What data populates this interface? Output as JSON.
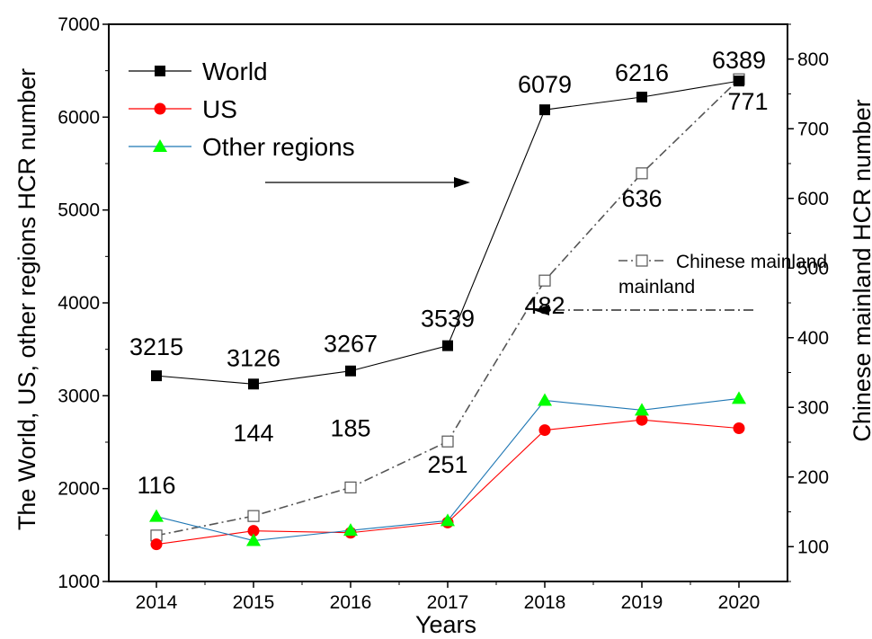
{
  "chart_data": {
    "type": "line",
    "xlabel": "Years",
    "ylabel_left": "The World, US, other regions HCR number",
    "ylabel_right": "Chinese mainland HCR number",
    "categories": [
      "2014",
      "2015",
      "2016",
      "2017",
      "2018",
      "2019",
      "2020"
    ],
    "ylim_left": [
      1000,
      7000
    ],
    "ylim_right": [
      50,
      850
    ],
    "yticks_left": [
      "1000",
      "2000",
      "3000",
      "4000",
      "5000",
      "6000",
      "7000"
    ],
    "yticks_right": [
      "100",
      "200",
      "300",
      "400",
      "500",
      "600",
      "700",
      "800"
    ],
    "grid": false,
    "legend_position": "top-left",
    "series": [
      {
        "name": "World",
        "axis": "left",
        "color": "#000000",
        "marker": "filled-square",
        "values": [
          3215,
          3126,
          3267,
          3539,
          6079,
          6216,
          6389
        ]
      },
      {
        "name": "US",
        "axis": "left",
        "color": "#ff0000",
        "marker": "filled-circle",
        "values": [
          1400,
          1545,
          1525,
          1635,
          2630,
          2740,
          2650
        ]
      },
      {
        "name": "Other regions",
        "axis": "left",
        "color": "#1f77b4",
        "marker": "green-triangle",
        "values": [
          1700,
          1440,
          1550,
          1655,
          2950,
          2845,
          2970
        ]
      },
      {
        "name": "Chinese mainland",
        "axis": "right",
        "color": "#555555",
        "marker": "open-square",
        "values": [
          116,
          144,
          185,
          251,
          482,
          636,
          771
        ]
      }
    ],
    "annotations": [
      {
        "text": "3215"
      },
      {
        "text": "3126"
      },
      {
        "text": "3267"
      },
      {
        "text": "3539"
      },
      {
        "text": "6079"
      },
      {
        "text": "6216"
      },
      {
        "text": "6389"
      },
      {
        "text": "116"
      },
      {
        "text": "144"
      },
      {
        "text": "185"
      },
      {
        "text": "251"
      },
      {
        "text": "482"
      },
      {
        "text": "636"
      },
      {
        "text": "771"
      }
    ],
    "legend_second_line": "mainland"
  }
}
